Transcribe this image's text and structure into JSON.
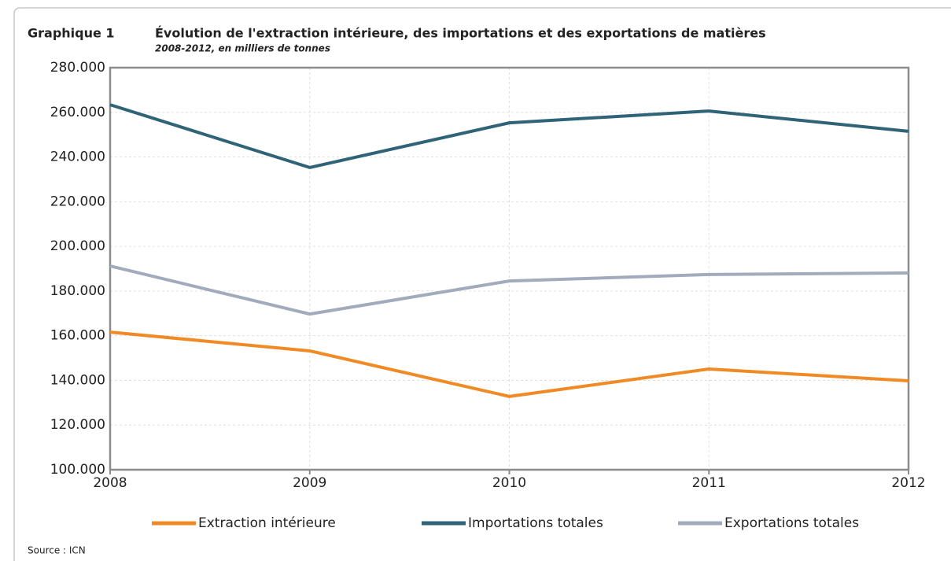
{
  "chart_data": {
    "type": "line",
    "figure_label": "Graphique 1",
    "title": "Évolution de l'extraction intérieure, des importations et des exportations de matières",
    "subtitle": "2008-2012, en milliers de tonnes",
    "source": "Source : ICN",
    "x": [
      2008,
      2009,
      2010,
      2011,
      2012
    ],
    "xlim": [
      2008,
      2012
    ],
    "xticks": [
      2008,
      2009,
      2010,
      2011,
      2012
    ],
    "ylim": [
      100000,
      280000
    ],
    "yticks": [
      {
        "value": 100000,
        "label": "100.000"
      },
      {
        "value": 120000,
        "label": "120.000"
      },
      {
        "value": 140000,
        "label": "140.000"
      },
      {
        "value": 160000,
        "label": "160.000"
      },
      {
        "value": 180000,
        "label": "180.000"
      },
      {
        "value": 200000,
        "label": "200.000"
      },
      {
        "value": 220000,
        "label": "220.000"
      },
      {
        "value": 240000,
        "label": "240.000"
      },
      {
        "value": 260000,
        "label": "260.000"
      },
      {
        "value": 280000,
        "label": "280.000"
      }
    ],
    "grid": true,
    "legend": "bottom",
    "series": [
      {
        "name": "Extraction intérieure",
        "color": "#f08a24",
        "values": [
          161600,
          153200,
          132800,
          145100,
          139800
        ]
      },
      {
        "name": "Importations totales",
        "color": "#2e6378",
        "values": [
          263400,
          235300,
          255300,
          260600,
          251500
        ]
      },
      {
        "name": "Exportations totales",
        "color": "#a2abbd",
        "values": [
          191200,
          169700,
          184500,
          187400,
          188100
        ]
      }
    ]
  }
}
